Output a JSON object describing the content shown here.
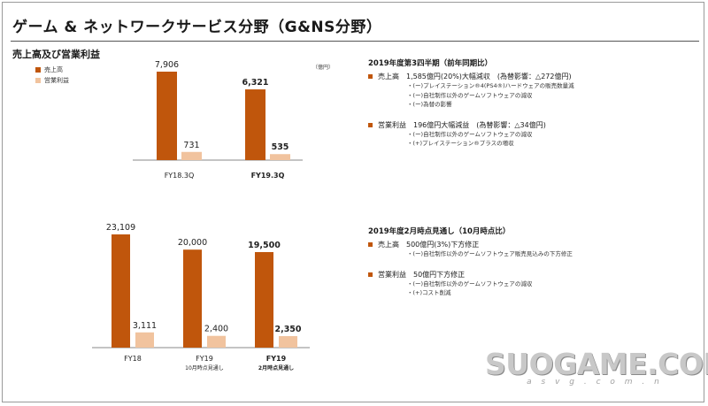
{
  "header": {
    "title": "ゲーム & ネットワークサービス分野（G&NS分野）",
    "section_title": "売上高及び営業利益"
  },
  "legend": {
    "items": [
      {
        "label": "売上高",
        "color": "#c0560c"
      },
      {
        "label": "営業利益",
        "color": "#f1c39e"
      }
    ]
  },
  "unit_label": "（億円）",
  "chart_data": [
    {
      "type": "bar",
      "categories": [
        "FY18.3Q",
        "FY19.3Q"
      ],
      "category_sublabels": [
        "",
        ""
      ],
      "series": [
        {
          "name": "売上高",
          "values": [
            7906,
            6321
          ],
          "labels": [
            "7,906",
            "6,321"
          ]
        },
        {
          "name": "営業利益",
          "values": [
            731,
            535
          ],
          "labels": [
            "731",
            "535"
          ]
        }
      ],
      "bold_category_index": 1
    },
    {
      "type": "bar",
      "categories": [
        "FY18",
        "FY19",
        "FY19"
      ],
      "category_sublabels": [
        "",
        "10月時点見通し",
        "2月時点見通し"
      ],
      "series": [
        {
          "name": "売上高",
          "values": [
            23109,
            20000,
            19500
          ],
          "labels": [
            "23,109",
            "20,000",
            "19,500"
          ]
        },
        {
          "name": "営業利益",
          "values": [
            3111,
            2400,
            2350
          ],
          "labels": [
            "3,111",
            "2,400",
            "2,350"
          ]
        }
      ],
      "bold_category_index": 2
    }
  ],
  "q3_panel": {
    "heading": "2019年度第3四半期（前年同期比）",
    "sales_line": "売上高　1,585億円(20%)大幅減収　(為替影響：△272億円)",
    "sales_details": [
      "・(ー)プレイステーション®4(PS4®)ハードウェアの販売数量減",
      "・(ー)自社制作以外のゲームソフトウェアの減収",
      "・(ー)為替の影響"
    ],
    "op_line": "営業利益　196億円大幅減益　(為替影響：△34億円)",
    "op_details": [
      "・(ー)自社制作以外のゲームソフトウェアの減収",
      "・(+)プレイステーション®プラスの増収"
    ]
  },
  "forecast_panel": {
    "heading": "2019年度2月時点見通し（10月時点比）",
    "sales_line": "売上高　500億円(3%)下方修正",
    "sales_details": [
      "・(ー)自社制作以外のゲームソフトウェア販売見込みの下方修正"
    ],
    "op_line": "営業利益　50億円下方修正",
    "op_details": [
      "・(ー)自社制作以外のゲームソフトウェアの減収",
      "・(+)コスト削減"
    ]
  },
  "watermark": {
    "main": "SUOGAME.COM",
    "sub": "a s v g . c o m . n"
  }
}
